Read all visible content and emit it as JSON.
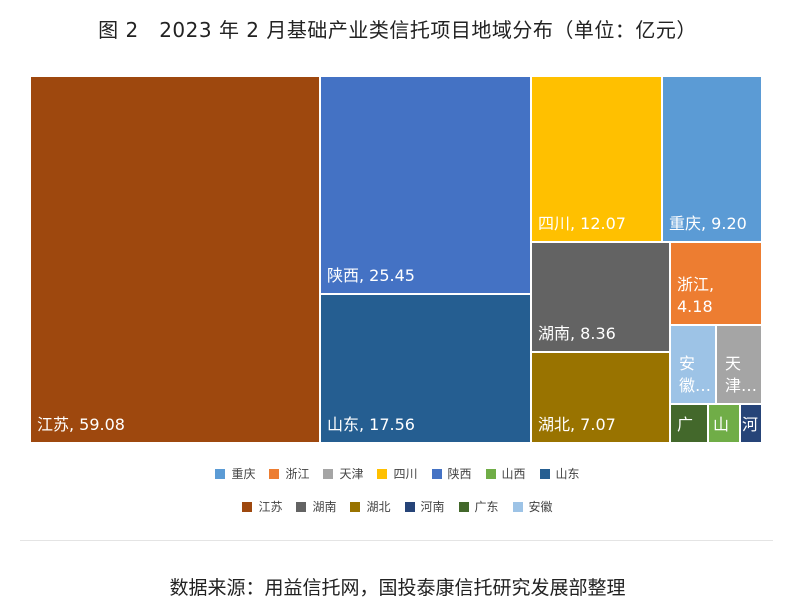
{
  "title": "图 2　2023 年 2 月基础产业类信托项目地域分布（单位：亿元）",
  "source": "数据来源：用益信托网，国投泰康信托研究发展部整理",
  "chart_data": {
    "type": "treemap",
    "title": "图 2　2023 年 2 月基础产业类信托项目地域分布（单位：亿元）",
    "unit": "亿元",
    "items": [
      {
        "name": "江苏",
        "value": 59.08,
        "color": "#9E480E",
        "label": "江苏, 59.08"
      },
      {
        "name": "陕西",
        "value": 25.45,
        "color": "#4472C4",
        "label": "陕西, 25.45"
      },
      {
        "name": "山东",
        "value": 17.56,
        "color": "#255E91",
        "label": "山东, 17.56"
      },
      {
        "name": "四川",
        "value": 12.07,
        "color": "#FFC000",
        "label": "四川, 12.07"
      },
      {
        "name": "重庆",
        "value": 9.2,
        "color": "#5B9BD5",
        "label": "重庆, 9.20"
      },
      {
        "name": "湖南",
        "value": 8.36,
        "color": "#636363",
        "label": "湖南, 8.36"
      },
      {
        "name": "湖北",
        "value": 7.07,
        "color": "#997300",
        "label": "湖北, 7.07"
      },
      {
        "name": "浙江",
        "value": 4.18,
        "color": "#ED7D31",
        "label": "浙江,\n4.18"
      },
      {
        "name": "安徽",
        "value": null,
        "color": "#9DC3E6",
        "label": "安\n徽…"
      },
      {
        "name": "天津",
        "value": null,
        "color": "#A5A5A5",
        "label": "天\n津…"
      },
      {
        "name": "广东",
        "value": null,
        "color": "#43682B",
        "label": "广"
      },
      {
        "name": "山西",
        "value": null,
        "color": "#70AD47",
        "label": "山"
      },
      {
        "name": "河南",
        "value": null,
        "color": "#264478",
        "label": "河"
      }
    ],
    "legend": {
      "placement": "bottom",
      "rows": [
        [
          "重庆",
          "浙江",
          "天津",
          "四川",
          "陕西",
          "山西",
          "山东"
        ],
        [
          "江苏",
          "湖南",
          "湖北",
          "河南",
          "广东",
          "安徽"
        ]
      ]
    }
  }
}
